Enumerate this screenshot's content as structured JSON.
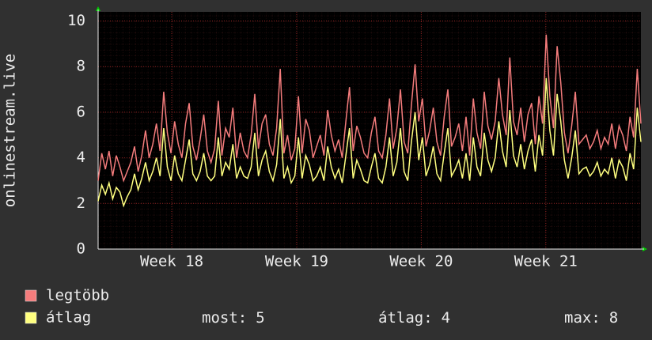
{
  "chart_data": {
    "type": "line",
    "ylabel": "onlinestream.live",
    "xlim": [
      0,
      149
    ],
    "xticks": [
      {
        "value": 20.2,
        "label": "Week 18"
      },
      {
        "value": 54.5,
        "label": "Week 19"
      },
      {
        "value": 88.7,
        "label": "Week 20"
      },
      {
        "value": 122.9,
        "label": "Week 21"
      }
    ],
    "ylim": [
      0,
      10.4
    ],
    "yticks": [
      0,
      2,
      4,
      6,
      8,
      10
    ],
    "grid": true,
    "series": [
      {
        "name": "legtöbb",
        "color": "#f47c7c",
        "values": [
          3.0,
          4.2,
          3.5,
          4.3,
          3.2,
          4.1,
          3.6,
          3.0,
          3.4,
          3.8,
          4.5,
          3.4,
          4.1,
          5.2,
          4.0,
          4.6,
          5.5,
          4.3,
          6.9,
          5.1,
          4.2,
          5.6,
          4.6,
          4.0,
          5.5,
          6.4,
          4.5,
          3.9,
          4.8,
          5.9,
          4.3,
          3.8,
          4.4,
          6.5,
          4.1,
          5.3,
          4.9,
          6.2,
          4.0,
          5.1,
          4.3,
          4.0,
          5.0,
          6.8,
          4.4,
          5.5,
          5.9,
          4.6,
          4.1,
          5.3,
          7.9,
          4.2,
          5.0,
          3.9,
          4.4,
          6.7,
          4.2,
          5.7,
          5.2,
          4.0,
          4.5,
          5.0,
          4.1,
          6.1,
          5.0,
          4.3,
          4.8,
          4.0,
          5.6,
          7.1,
          4.3,
          5.4,
          4.9,
          4.2,
          4.0,
          5.1,
          5.8,
          4.3,
          4.0,
          5.0,
          6.6,
          4.4,
          5.3,
          7.0,
          4.7,
          4.2,
          6.3,
          8.1,
          5.6,
          6.6,
          4.5,
          5.2,
          6.2,
          4.7,
          4.1,
          5.8,
          7.0,
          4.5,
          4.9,
          5.5,
          4.3,
          5.8,
          4.1,
          6.6,
          5.1,
          4.4,
          6.9,
          5.4,
          4.8,
          5.6,
          7.5,
          5.9,
          5.0,
          8.4,
          5.6,
          5.0,
          6.2,
          4.7,
          5.9,
          6.4,
          4.6,
          6.7,
          5.5,
          9.4,
          6.7,
          5.3,
          8.9,
          7.3,
          5.1,
          4.2,
          5.4,
          6.9,
          4.6,
          4.8,
          5.0,
          4.4,
          4.7,
          5.2,
          4.4,
          4.9,
          4.6,
          5.5,
          4.4,
          5.4,
          5.0,
          4.3,
          5.8,
          4.9,
          7.9,
          5.5
        ]
      },
      {
        "name": "átlag",
        "color": "#ffff80",
        "values": [
          2.1,
          2.8,
          2.4,
          2.9,
          2.2,
          2.7,
          2.5,
          1.9,
          2.3,
          2.6,
          3.3,
          2.6,
          3.1,
          3.8,
          3.0,
          3.4,
          4.0,
          3.2,
          5.3,
          3.6,
          3.0,
          4.1,
          3.3,
          3.0,
          3.9,
          4.8,
          3.3,
          3.0,
          3.4,
          4.2,
          3.2,
          3.0,
          3.2,
          4.9,
          3.2,
          3.8,
          3.5,
          4.6,
          3.1,
          3.6,
          3.2,
          3.1,
          3.6,
          5.1,
          3.2,
          3.9,
          4.3,
          3.4,
          3.0,
          3.7,
          5.7,
          3.1,
          3.6,
          2.9,
          3.2,
          4.9,
          3.1,
          4.1,
          3.7,
          3.0,
          3.2,
          3.6,
          3.0,
          4.5,
          3.6,
          3.1,
          3.5,
          2.9,
          4.1,
          5.3,
          3.1,
          3.9,
          3.5,
          3.0,
          2.9,
          3.6,
          4.2,
          3.1,
          2.9,
          3.6,
          4.9,
          3.2,
          3.8,
          5.3,
          3.4,
          3.0,
          4.7,
          6.0,
          3.9,
          4.9,
          3.2,
          3.7,
          4.5,
          3.3,
          3.0,
          4.2,
          5.3,
          3.2,
          3.5,
          3.9,
          3.1,
          4.2,
          3.0,
          4.9,
          3.6,
          3.2,
          5.1,
          3.9,
          3.4,
          4.0,
          5.6,
          4.3,
          3.6,
          6.1,
          4.1,
          3.6,
          4.6,
          3.5,
          4.3,
          4.8,
          3.4,
          5.0,
          4.1,
          7.5,
          5.2,
          4.1,
          6.8,
          5.6,
          3.9,
          3.1,
          4.0,
          5.2,
          3.3,
          3.5,
          3.6,
          3.2,
          3.4,
          3.8,
          3.2,
          3.5,
          3.3,
          4.0,
          3.1,
          3.9,
          3.6,
          3.0,
          4.2,
          3.5,
          6.2,
          4.7
        ]
      }
    ],
    "stats": [
      {
        "label": "most:",
        "value": 5
      },
      {
        "label": "átlag:",
        "value": 4
      },
      {
        "label": "max:",
        "value": 8
      }
    ]
  }
}
